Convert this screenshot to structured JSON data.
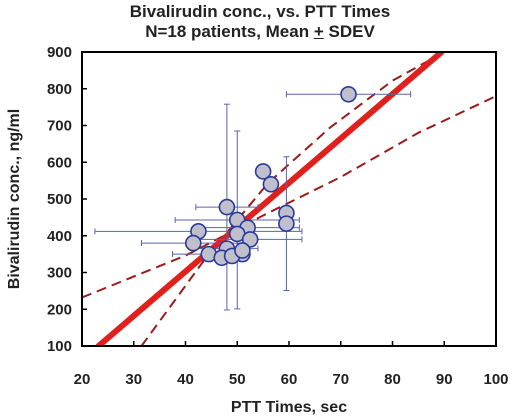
{
  "chart_data": {
    "type": "scatter",
    "title": "Bivalirudin conc., vs. PTT Times",
    "subtitle": {
      "before": "N=18 patients, Mean ",
      "pm": "+",
      "after": " SDEV"
    },
    "xlabel": "PTT Times, sec",
    "ylabel": "Bivalirudin conc., ng/ml",
    "xlim": [
      20,
      100
    ],
    "ylim": [
      100,
      900
    ],
    "xticks": [
      20,
      30,
      40,
      50,
      60,
      70,
      80,
      90,
      100
    ],
    "yticks": [
      100,
      200,
      300,
      400,
      500,
      600,
      700,
      800,
      900
    ],
    "grid": false,
    "legend": "none",
    "colors": {
      "marker_fill": "#c0c0cc",
      "marker_edge": "#2a3a9a",
      "error_bar": "#5a64a8",
      "fit_line": "#e0201c",
      "confidence_band": "#9b1b1b",
      "axis": "#000000"
    },
    "points": [
      {
        "x": 71.5,
        "y": 785,
        "xerr": 12,
        "yerr": 0
      },
      {
        "x": 55,
        "y": 575,
        "xerr": 0,
        "yerr": 0
      },
      {
        "x": 56.5,
        "y": 540,
        "xerr": 0,
        "yerr": 0
      },
      {
        "x": 48,
        "y": 478,
        "xerr": 6,
        "yerr": 280
      },
      {
        "x": 59.5,
        "y": 462,
        "xerr": 0,
        "yerr": 0
      },
      {
        "x": 50,
        "y": 443,
        "xerr": 12,
        "yerr": 242
      },
      {
        "x": 59.5,
        "y": 433,
        "xerr": 0,
        "yerr": 182
      },
      {
        "x": 52,
        "y": 422,
        "xerr": 10,
        "yerr": 0
      },
      {
        "x": 42.5,
        "y": 412,
        "xerr": 20,
        "yerr": 0
      },
      {
        "x": 50,
        "y": 405,
        "xerr": 0,
        "yerr": 0
      },
      {
        "x": 52.5,
        "y": 390,
        "xerr": 10,
        "yerr": 0
      },
      {
        "x": 41.5,
        "y": 380,
        "xerr": 10,
        "yerr": 0
      },
      {
        "x": 48,
        "y": 365,
        "xerr": 6,
        "yerr": 0
      },
      {
        "x": 51,
        "y": 350,
        "xerr": 0,
        "yerr": 0
      },
      {
        "x": 44.5,
        "y": 350,
        "xerr": 7,
        "yerr": 0
      },
      {
        "x": 47,
        "y": 340,
        "xerr": 0,
        "yerr": 0
      },
      {
        "x": 49,
        "y": 345,
        "xerr": 0,
        "yerr": 0
      },
      {
        "x": 51,
        "y": 360,
        "xerr": 0,
        "yerr": 0
      }
    ],
    "regression_line": {
      "x": [
        23.2,
        89.5
      ],
      "y": [
        100,
        900
      ]
    },
    "confidence_upper": {
      "x": [
        31.5,
        44,
        56,
        68,
        80,
        90
      ],
      "y": [
        100,
        341,
        544,
        695,
        822,
        900
      ]
    },
    "confidence_lower": {
      "x": [
        20,
        40,
        55,
        70,
        85,
        100
      ],
      "y": [
        232,
        346,
        455,
        560,
        680,
        780
      ]
    }
  }
}
